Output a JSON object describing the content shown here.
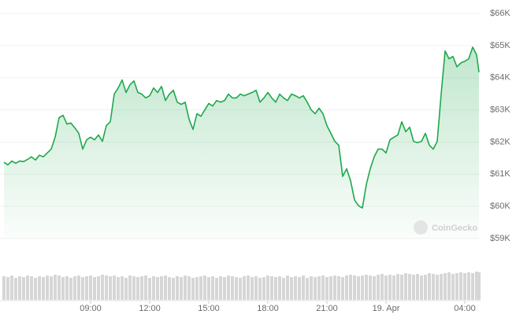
{
  "chart_data": {
    "type": "area",
    "color": "#1ea84c",
    "fill_color": "#1ea84c",
    "volume_color": "#d6d6d6",
    "watermark": "CoinGecko",
    "grid": true,
    "xlim": [
      4.4,
      28.8
    ],
    "ylim": [
      59000,
      66000
    ],
    "xticks": [
      {
        "value": 9,
        "label": "09:00"
      },
      {
        "value": 12,
        "label": "12:00"
      },
      {
        "value": 15,
        "label": "15:00"
      },
      {
        "value": 18,
        "label": "18:00"
      },
      {
        "value": 21,
        "label": "21:00"
      },
      {
        "value": 24,
        "label": "19. Apr"
      },
      {
        "value": 28,
        "label": "04:00"
      }
    ],
    "yticks": [
      {
        "value": 59000,
        "label": "$59K"
      },
      {
        "value": 60000,
        "label": "$60K"
      },
      {
        "value": 61000,
        "label": "$61K"
      },
      {
        "value": 62000,
        "label": "$62K"
      },
      {
        "value": 63000,
        "label": "$63K"
      },
      {
        "value": 64000,
        "label": "$64K"
      },
      {
        "value": 65000,
        "label": "$65K"
      },
      {
        "value": 66000,
        "label": "$66K"
      }
    ],
    "x": [
      4.6,
      4.8,
      5.0,
      5.2,
      5.4,
      5.6,
      5.8,
      6.0,
      6.2,
      6.4,
      6.6,
      6.8,
      7.0,
      7.2,
      7.4,
      7.6,
      7.8,
      8.0,
      8.2,
      8.4,
      8.6,
      8.8,
      9.0,
      9.2,
      9.4,
      9.6,
      9.8,
      10.0,
      10.2,
      10.4,
      10.6,
      10.8,
      11.0,
      11.2,
      11.4,
      11.6,
      11.8,
      12.0,
      12.2,
      12.4,
      12.6,
      12.8,
      13.0,
      13.2,
      13.4,
      13.6,
      13.8,
      14.0,
      14.2,
      14.4,
      14.6,
      14.8,
      15.0,
      15.2,
      15.4,
      15.6,
      15.8,
      16.0,
      16.2,
      16.4,
      16.6,
      16.8,
      17.0,
      17.2,
      17.4,
      17.6,
      17.8,
      18.0,
      18.2,
      18.4,
      18.6,
      18.8,
      19.0,
      19.2,
      19.4,
      19.6,
      19.8,
      20.0,
      20.2,
      20.4,
      20.6,
      20.8,
      21.0,
      21.2,
      21.4,
      21.6,
      21.8,
      22.0,
      22.2,
      22.4,
      22.6,
      22.8,
      23.0,
      23.2,
      23.4,
      23.6,
      23.8,
      24.0,
      24.2,
      24.4,
      24.6,
      24.8,
      25.0,
      25.2,
      25.4,
      25.6,
      25.8,
      26.0,
      26.2,
      26.4,
      26.6,
      26.8,
      27.0,
      27.2,
      27.4,
      27.6,
      27.8,
      28.0,
      28.2,
      28.4,
      28.6,
      28.72
    ],
    "values": [
      61370,
      61290,
      61410,
      61340,
      61410,
      61390,
      61460,
      61540,
      61440,
      61590,
      61540,
      61660,
      61780,
      62150,
      62760,
      62830,
      62560,
      62590,
      62440,
      62270,
      61780,
      62070,
      62150,
      62070,
      62220,
      62020,
      62510,
      62630,
      63490,
      63680,
      63930,
      63540,
      63780,
      63900,
      63540,
      63490,
      63370,
      63440,
      63680,
      63540,
      63730,
      63290,
      63490,
      63610,
      63240,
      63170,
      63240,
      62710,
      62390,
      62880,
      62800,
      63000,
      63200,
      63120,
      63290,
      63240,
      63290,
      63490,
      63370,
      63370,
      63490,
      63440,
      63490,
      63540,
      63610,
      63240,
      63370,
      63540,
      63370,
      63240,
      63490,
      63370,
      63290,
      63490,
      63440,
      63370,
      63440,
      63240,
      63000,
      62880,
      63050,
      62880,
      62510,
      62270,
      62020,
      61900,
      60930,
      61170,
      60800,
      60200,
      60020,
      59950,
      60680,
      61170,
      61540,
      61780,
      61780,
      61660,
      62070,
      62150,
      62220,
      62630,
      62320,
      62460,
      62020,
      61980,
      62020,
      62270,
      61900,
      61780,
      62020,
      63490,
      64830,
      64590,
      64660,
      64340,
      64460,
      64510,
      64590,
      64950,
      64710,
      64170
    ],
    "volume": [
      30,
      29,
      31,
      28,
      30,
      29,
      31,
      30,
      28,
      30,
      29,
      31,
      30,
      32,
      31,
      29,
      30,
      28,
      30,
      31,
      29,
      30,
      31,
      29,
      30,
      32,
      31,
      30,
      31,
      29,
      30,
      28,
      31,
      30,
      29,
      30,
      31,
      28,
      30,
      29,
      30,
      31,
      29,
      28,
      30,
      29,
      31,
      30,
      28,
      29,
      30,
      31,
      29,
      30,
      28,
      30,
      29,
      31,
      30,
      29,
      28,
      30,
      31,
      29,
      30,
      28,
      29,
      31,
      30,
      29,
      30,
      28,
      31,
      29,
      30,
      29,
      31,
      28,
      30,
      29,
      30,
      31,
      29,
      30,
      31,
      30,
      29,
      31,
      32,
      31,
      30,
      31,
      32,
      31,
      30,
      32,
      33,
      31,
      32,
      31,
      33,
      32,
      34,
      33,
      32,
      33,
      31,
      32,
      34,
      33,
      32,
      33,
      34,
      35,
      33,
      34,
      35,
      34,
      35,
      34,
      36,
      35
    ]
  }
}
